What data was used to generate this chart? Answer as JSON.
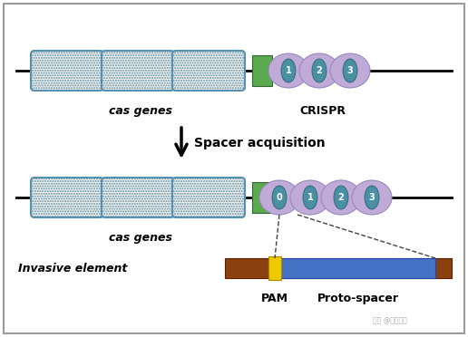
{
  "bg_color": "#ffffff",
  "border_color": "#999999",
  "line_color": "#000000",
  "cas_box_color": "#f5f0e8",
  "cas_box_border": "#5590b0",
  "repeat_color": "#c0aad8",
  "repeat_border": "#9988bb",
  "inner_color": "#4a90a4",
  "inner_border": "#2a6070",
  "spacer_color": "#5aaa50",
  "invasive_brown": "#8B4010",
  "invasive_blue": "#4472C4",
  "invasive_yellow": "#EEC900",
  "text_color": "#000000",
  "arrow_color": "#000000",
  "title1": "CRISPR",
  "title2": "cas genes",
  "title3": "cas genes",
  "title4": "Invasive element",
  "title5": "Spacer acquisition",
  "title6_pam": "PAM",
  "title6_proto": "Proto-spacer",
  "repeat_labels_top": [
    "1",
    "2",
    "3"
  ],
  "repeat_labels_bottom": [
    "0",
    "1",
    "2",
    "3"
  ],
  "figsize": [
    5.16,
    3.72
  ],
  "dpi": 100
}
